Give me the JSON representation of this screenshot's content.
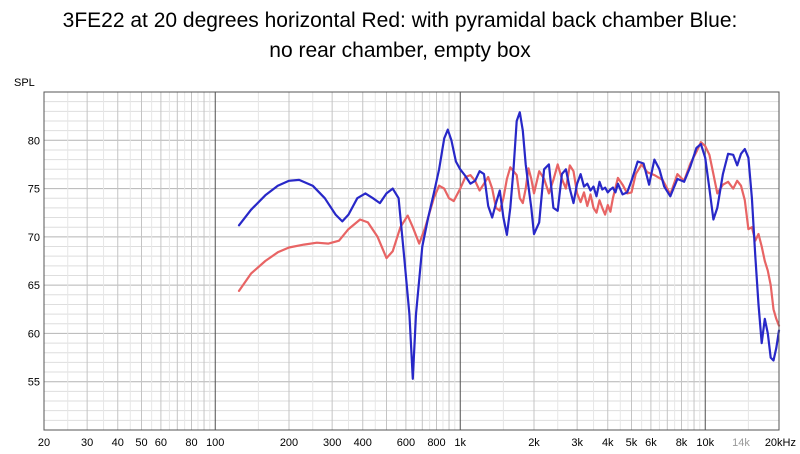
{
  "chart_data": {
    "type": "line",
    "title_lines": [
      "3FE22 at 20 degrees horizontal Red: with pyramidal back chamber Blue:",
      "no rear chamber, empty box"
    ],
    "ylabel": "SPL",
    "x_scale": "log",
    "xlim": [
      20,
      20000
    ],
    "ylim": [
      50,
      85
    ],
    "grid": true,
    "y_ticks": [
      {
        "value": 55,
        "label": "55"
      },
      {
        "value": 60,
        "label": "60"
      },
      {
        "value": 65,
        "label": "65"
      },
      {
        "value": 70,
        "label": "70"
      },
      {
        "value": 75,
        "label": "75"
      },
      {
        "value": 80,
        "label": "80"
      }
    ],
    "x_ticks": [
      {
        "value": 20,
        "label": "20",
        "muted": false
      },
      {
        "value": 30,
        "label": "30",
        "muted": false
      },
      {
        "value": 40,
        "label": "40",
        "muted": false
      },
      {
        "value": 50,
        "label": "50",
        "muted": false
      },
      {
        "value": 60,
        "label": "60",
        "muted": false
      },
      {
        "value": 80,
        "label": "80",
        "muted": false
      },
      {
        "value": 100,
        "label": "100",
        "muted": false
      },
      {
        "value": 200,
        "label": "200",
        "muted": false
      },
      {
        "value": 300,
        "label": "300",
        "muted": false
      },
      {
        "value": 400,
        "label": "400",
        "muted": false
      },
      {
        "value": 600,
        "label": "600",
        "muted": false
      },
      {
        "value": 800,
        "label": "800",
        "muted": false
      },
      {
        "value": 1000,
        "label": "1k",
        "muted": false
      },
      {
        "value": 2000,
        "label": "2k",
        "muted": false
      },
      {
        "value": 3000,
        "label": "3k",
        "muted": false
      },
      {
        "value": 4000,
        "label": "4k",
        "muted": false
      },
      {
        "value": 5000,
        "label": "5k",
        "muted": false
      },
      {
        "value": 6000,
        "label": "6k",
        "muted": false
      },
      {
        "value": 8000,
        "label": "8k",
        "muted": false
      },
      {
        "value": 10000,
        "label": "10k",
        "muted": false
      },
      {
        "value": 14000,
        "label": "14k",
        "muted": true
      },
      {
        "value": 20000,
        "label": "20kHz",
        "muted": false
      }
    ],
    "series": [
      {
        "color": "#e86464",
        "points": [
          [
            125,
            64.4
          ],
          [
            140,
            66.2
          ],
          [
            160,
            67.5
          ],
          [
            180,
            68.4
          ],
          [
            200,
            68.9
          ],
          [
            230,
            69.2
          ],
          [
            260,
            69.4
          ],
          [
            290,
            69.3
          ],
          [
            320,
            69.6
          ],
          [
            350,
            70.8
          ],
          [
            390,
            71.8
          ],
          [
            420,
            71.5
          ],
          [
            460,
            70.0
          ],
          [
            500,
            67.8
          ],
          [
            530,
            68.5
          ],
          [
            570,
            71.0
          ],
          [
            610,
            72.2
          ],
          [
            640,
            71.0
          ],
          [
            680,
            69.3
          ],
          [
            720,
            71.0
          ],
          [
            780,
            74.0
          ],
          [
            820,
            75.3
          ],
          [
            860,
            75.0
          ],
          [
            900,
            74.0
          ],
          [
            940,
            73.7
          ],
          [
            1000,
            75.0
          ],
          [
            1050,
            76.2
          ],
          [
            1100,
            76.4
          ],
          [
            1150,
            75.8
          ],
          [
            1200,
            74.8
          ],
          [
            1250,
            75.5
          ],
          [
            1300,
            76.2
          ],
          [
            1350,
            75.0
          ],
          [
            1400,
            73.0
          ],
          [
            1450,
            72.7
          ],
          [
            1500,
            74.0
          ],
          [
            1550,
            76.0
          ],
          [
            1600,
            77.2
          ],
          [
            1700,
            76.4
          ],
          [
            1750,
            74.0
          ],
          [
            1800,
            73.5
          ],
          [
            1850,
            75.0
          ],
          [
            1900,
            77.1
          ],
          [
            1950,
            76.0
          ],
          [
            2000,
            74.5
          ],
          [
            2100,
            76.8
          ],
          [
            2200,
            76.0
          ],
          [
            2300,
            74.5
          ],
          [
            2400,
            75.9
          ],
          [
            2500,
            77.5
          ],
          [
            2600,
            76.0
          ],
          [
            2700,
            75.0
          ],
          [
            2800,
            77.4
          ],
          [
            2900,
            76.8
          ],
          [
            3000,
            74.5
          ],
          [
            3100,
            73.6
          ],
          [
            3200,
            74.6
          ],
          [
            3300,
            73.2
          ],
          [
            3400,
            74.4
          ],
          [
            3500,
            73.0
          ],
          [
            3600,
            72.5
          ],
          [
            3700,
            73.8
          ],
          [
            3800,
            73.0
          ],
          [
            3900,
            72.3
          ],
          [
            4000,
            73.3
          ],
          [
            4100,
            72.6
          ],
          [
            4200,
            74.0
          ],
          [
            4400,
            76.1
          ],
          [
            4600,
            75.4
          ],
          [
            4800,
            74.5
          ],
          [
            5000,
            74.6
          ],
          [
            5200,
            76.5
          ],
          [
            5500,
            77.5
          ],
          [
            5800,
            76.7
          ],
          [
            6200,
            76.4
          ],
          [
            6700,
            75.9
          ],
          [
            7200,
            74.4
          ],
          [
            7700,
            76.5
          ],
          [
            8200,
            75.8
          ],
          [
            8700,
            77.6
          ],
          [
            9200,
            78.8
          ],
          [
            9600,
            79.8
          ],
          [
            10000,
            79.4
          ],
          [
            10400,
            78.5
          ],
          [
            10800,
            76.5
          ],
          [
            11200,
            74.5
          ],
          [
            11800,
            75.4
          ],
          [
            12400,
            75.7
          ],
          [
            13000,
            75.0
          ],
          [
            13500,
            75.8
          ],
          [
            14000,
            75.3
          ],
          [
            14500,
            73.8
          ],
          [
            15000,
            70.8
          ],
          [
            15500,
            71.0
          ],
          [
            16000,
            69.6
          ],
          [
            16500,
            70.3
          ],
          [
            17000,
            69.0
          ],
          [
            17500,
            67.5
          ],
          [
            18000,
            66.5
          ],
          [
            18500,
            65.0
          ],
          [
            19000,
            62.5
          ],
          [
            19500,
            61.5
          ],
          [
            20000,
            60.8
          ]
        ]
      },
      {
        "color": "#2828c8",
        "points": [
          [
            125,
            71.2
          ],
          [
            140,
            72.8
          ],
          [
            160,
            74.3
          ],
          [
            180,
            75.3
          ],
          [
            200,
            75.8
          ],
          [
            220,
            75.9
          ],
          [
            250,
            75.3
          ],
          [
            280,
            74.0
          ],
          [
            310,
            72.3
          ],
          [
            330,
            71.6
          ],
          [
            350,
            72.3
          ],
          [
            380,
            74.0
          ],
          [
            410,
            74.5
          ],
          [
            440,
            74.0
          ],
          [
            470,
            73.5
          ],
          [
            500,
            74.5
          ],
          [
            530,
            75.0
          ],
          [
            560,
            74.0
          ],
          [
            590,
            68.0
          ],
          [
            620,
            62.0
          ],
          [
            640,
            55.3
          ],
          [
            660,
            62.0
          ],
          [
            700,
            69.0
          ],
          [
            740,
            72.0
          ],
          [
            780,
            74.5
          ],
          [
            820,
            77.0
          ],
          [
            860,
            80.2
          ],
          [
            890,
            81.1
          ],
          [
            920,
            80.0
          ],
          [
            960,
            77.8
          ],
          [
            1000,
            77.0
          ],
          [
            1050,
            76.3
          ],
          [
            1100,
            75.5
          ],
          [
            1150,
            75.8
          ],
          [
            1200,
            76.8
          ],
          [
            1250,
            76.5
          ],
          [
            1300,
            73.2
          ],
          [
            1350,
            72.0
          ],
          [
            1400,
            73.5
          ],
          [
            1450,
            74.8
          ],
          [
            1500,
            72.0
          ],
          [
            1550,
            70.2
          ],
          [
            1600,
            73.0
          ],
          [
            1650,
            77.0
          ],
          [
            1700,
            82.0
          ],
          [
            1750,
            82.9
          ],
          [
            1800,
            81.0
          ],
          [
            1850,
            77.5
          ],
          [
            1900,
            75.2
          ],
          [
            1950,
            73.0
          ],
          [
            2000,
            70.3
          ],
          [
            2100,
            71.5
          ],
          [
            2200,
            77.0
          ],
          [
            2300,
            77.5
          ],
          [
            2400,
            73.0
          ],
          [
            2500,
            72.7
          ],
          [
            2600,
            76.5
          ],
          [
            2700,
            77.0
          ],
          [
            2800,
            75.0
          ],
          [
            2900,
            73.5
          ],
          [
            3000,
            75.5
          ],
          [
            3100,
            76.5
          ],
          [
            3200,
            75.2
          ],
          [
            3300,
            75.5
          ],
          [
            3400,
            74.8
          ],
          [
            3500,
            75.2
          ],
          [
            3600,
            74.2
          ],
          [
            3700,
            75.7
          ],
          [
            3800,
            74.9
          ],
          [
            3900,
            75.1
          ],
          [
            4000,
            74.6
          ],
          [
            4100,
            74.9
          ],
          [
            4200,
            75.1
          ],
          [
            4300,
            74.6
          ],
          [
            4400,
            75.5
          ],
          [
            4600,
            74.4
          ],
          [
            4800,
            74.6
          ],
          [
            5000,
            75.8
          ],
          [
            5300,
            77.8
          ],
          [
            5600,
            77.6
          ],
          [
            5900,
            75.4
          ],
          [
            6200,
            78.0
          ],
          [
            6500,
            77.0
          ],
          [
            6800,
            75.2
          ],
          [
            7200,
            74.2
          ],
          [
            7700,
            76.0
          ],
          [
            8200,
            75.7
          ],
          [
            8700,
            77.3
          ],
          [
            9200,
            79.2
          ],
          [
            9600,
            79.6
          ],
          [
            10000,
            78.2
          ],
          [
            10400,
            75.0
          ],
          [
            10800,
            71.8
          ],
          [
            11200,
            73.0
          ],
          [
            11800,
            76.5
          ],
          [
            12400,
            78.6
          ],
          [
            13000,
            78.5
          ],
          [
            13500,
            77.4
          ],
          [
            14000,
            78.6
          ],
          [
            14500,
            79.1
          ],
          [
            15000,
            78.2
          ],
          [
            15500,
            74.0
          ],
          [
            16000,
            68.0
          ],
          [
            16500,
            63.0
          ],
          [
            17000,
            59.0
          ],
          [
            17500,
            61.5
          ],
          [
            18000,
            60.0
          ],
          [
            18500,
            57.5
          ],
          [
            19000,
            57.2
          ],
          [
            19500,
            58.5
          ],
          [
            20000,
            60.3
          ]
        ]
      }
    ]
  }
}
